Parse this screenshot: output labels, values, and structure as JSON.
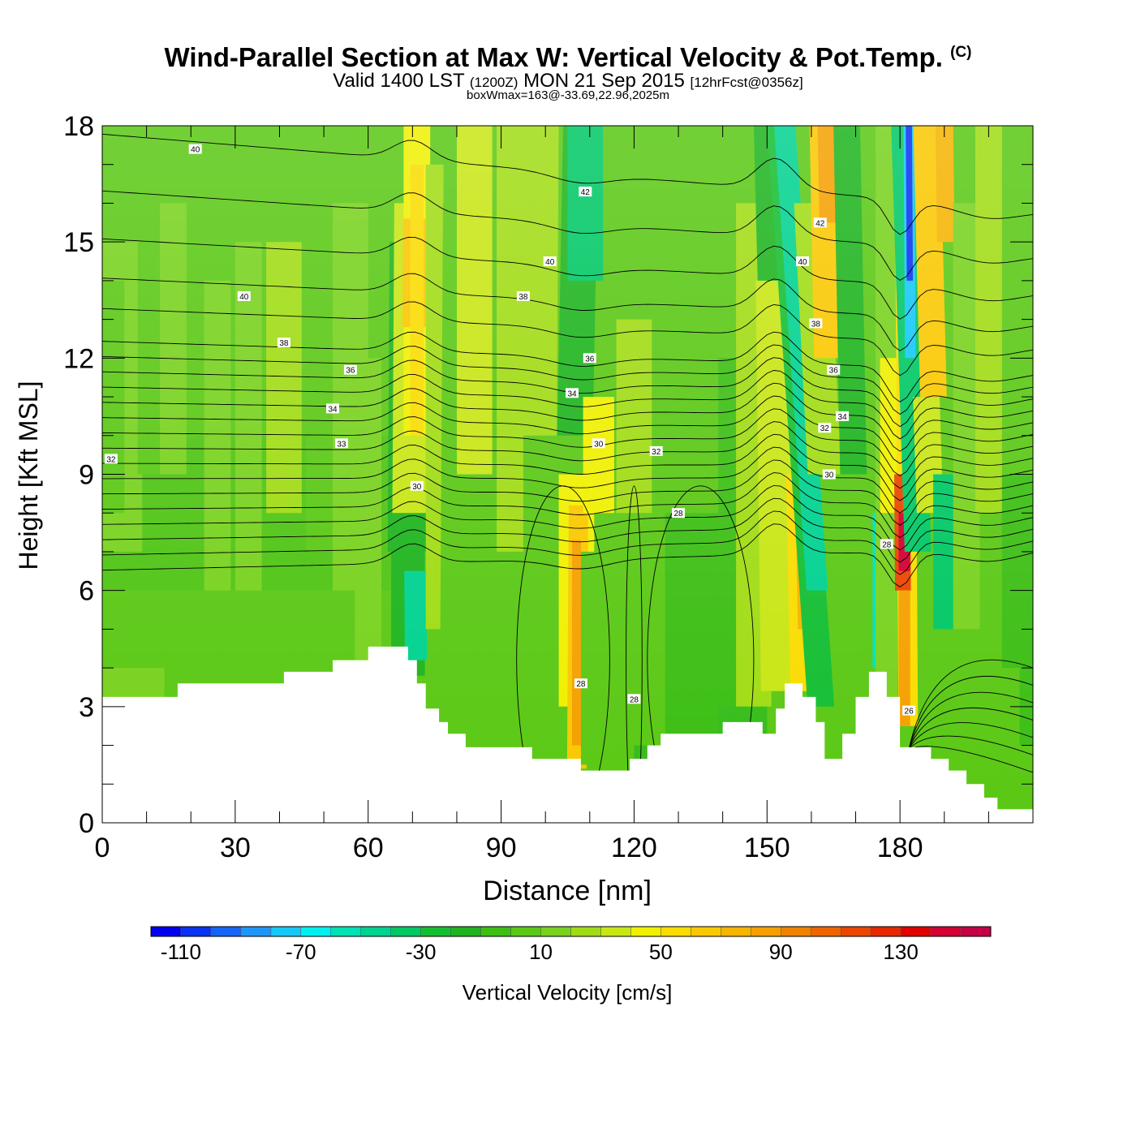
{
  "header": {
    "title": "Wind-Parallel Section at Max W: Vertical Velocity & Pot.Temp.",
    "copyright": "(C)",
    "valid_prefix": "Valid 1400 LST",
    "valid_z": "(1200Z)",
    "valid_date": "MON 21 Sep 2015",
    "forecast": "[12hrFcst@0356z]",
    "box_info": "boxWmax=163@-33.69,22.96,2025m"
  },
  "chart_data": {
    "type": "heatmap",
    "title": "Wind-Parallel Section at Max W: Vertical Velocity & Pot.Temp.",
    "xlabel": "Distance [nm]",
    "ylabel": "Height [Kft MSL]",
    "xlim": [
      0,
      210
    ],
    "ylim": [
      0,
      18
    ],
    "x_ticks": [
      0,
      30,
      60,
      90,
      120,
      150,
      180
    ],
    "y_ticks": [
      0,
      3,
      6,
      9,
      12,
      15,
      18
    ],
    "colorbar": {
      "label": "Vertical Velocity [cm/s]",
      "levels": [
        -120,
        -110,
        -100,
        -90,
        -80,
        -70,
        -60,
        -50,
        -40,
        -30,
        -20,
        -10,
        0,
        10,
        20,
        30,
        40,
        50,
        60,
        70,
        80,
        90,
        100,
        110,
        120,
        130,
        140,
        150,
        160
      ],
      "tick_labels": [
        "-110",
        "-70",
        "-30",
        "10",
        "50",
        "90",
        "130"
      ],
      "colors": [
        "#0000ee",
        "#0a32f2",
        "#1465f5",
        "#1e96f8",
        "#14c8f8",
        "#00f0f0",
        "#00e2b4",
        "#00d290",
        "#00c864",
        "#14be32",
        "#1eb41e",
        "#3cbe14",
        "#5ac814",
        "#78d21e",
        "#a0dc14",
        "#c8e614",
        "#f0f000",
        "#fadc00",
        "#fac800",
        "#f5b400",
        "#f5a000",
        "#f08200",
        "#f06400",
        "#eb4600",
        "#e62800",
        "#e10000",
        "#d20032",
        "#c30046"
      ]
    },
    "isentrope_labels": [
      {
        "x": 21,
        "y": 17.4,
        "text": "40"
      },
      {
        "x": 109,
        "y": 16.3,
        "text": "42"
      },
      {
        "x": 162,
        "y": 15.5,
        "text": "42"
      },
      {
        "x": 101,
        "y": 14.5,
        "text": "40"
      },
      {
        "x": 158,
        "y": 14.5,
        "text": "40"
      },
      {
        "x": 32,
        "y": 13.6,
        "text": "40"
      },
      {
        "x": 95,
        "y": 13.6,
        "text": "38"
      },
      {
        "x": 161,
        "y": 12.9,
        "text": "38"
      },
      {
        "x": 41,
        "y": 12.4,
        "text": "38"
      },
      {
        "x": 110,
        "y": 12.0,
        "text": "36"
      },
      {
        "x": 56,
        "y": 11.7,
        "text": "36"
      },
      {
        "x": 165,
        "y": 11.7,
        "text": "36"
      },
      {
        "x": 106,
        "y": 11.1,
        "text": "34"
      },
      {
        "x": 52,
        "y": 10.7,
        "text": "34"
      },
      {
        "x": 167,
        "y": 10.5,
        "text": "34"
      },
      {
        "x": 163,
        "y": 10.2,
        "text": "32"
      },
      {
        "x": 54,
        "y": 9.8,
        "text": "33"
      },
      {
        "x": 112,
        "y": 9.8,
        "text": "30"
      },
      {
        "x": 125,
        "y": 9.6,
        "text": "32"
      },
      {
        "x": 2,
        "y": 9.4,
        "text": "32"
      },
      {
        "x": 71,
        "y": 8.7,
        "text": "30"
      },
      {
        "x": 164,
        "y": 9.0,
        "text": "30"
      },
      {
        "x": 130,
        "y": 8.0,
        "text": "28"
      },
      {
        "x": 177,
        "y": 7.2,
        "text": "28"
      },
      {
        "x": 108,
        "y": 3.6,
        "text": "28"
      },
      {
        "x": 120,
        "y": 3.2,
        "text": "28"
      },
      {
        "x": 182,
        "y": 2.9,
        "text": "26"
      }
    ],
    "terrain": [
      [
        0,
        3.25
      ],
      [
        17,
        3.25
      ],
      [
        17,
        3.6
      ],
      [
        41,
        3.6
      ],
      [
        41,
        3.9
      ],
      [
        52,
        3.9
      ],
      [
        52,
        4.2
      ],
      [
        60,
        4.2
      ],
      [
        60,
        4.55
      ],
      [
        69,
        4.55
      ],
      [
        69,
        4.2
      ],
      [
        71,
        4.2
      ],
      [
        71,
        3.6
      ],
      [
        73,
        3.6
      ],
      [
        73,
        2.95
      ],
      [
        76,
        2.95
      ],
      [
        76,
        2.6
      ],
      [
        78,
        2.6
      ],
      [
        78,
        2.3
      ],
      [
        82,
        2.3
      ],
      [
        82,
        1.95
      ],
      [
        97,
        1.95
      ],
      [
        97,
        1.65
      ],
      [
        108,
        1.65
      ],
      [
        108,
        1.35
      ],
      [
        119,
        1.35
      ],
      [
        119,
        1.65
      ],
      [
        123,
        1.65
      ],
      [
        123,
        2.0
      ],
      [
        126,
        2.0
      ],
      [
        126,
        2.3
      ],
      [
        140,
        2.3
      ],
      [
        140,
        2.6
      ],
      [
        149,
        2.6
      ],
      [
        149,
        2.3
      ],
      [
        152,
        2.3
      ],
      [
        152,
        2.95
      ],
      [
        154,
        2.95
      ],
      [
        154,
        3.6
      ],
      [
        158,
        3.6
      ],
      [
        158,
        3.25
      ],
      [
        161,
        3.25
      ],
      [
        161,
        2.6
      ],
      [
        163,
        2.6
      ],
      [
        163,
        1.65
      ],
      [
        167,
        1.65
      ],
      [
        167,
        2.3
      ],
      [
        170,
        2.3
      ],
      [
        170,
        3.25
      ],
      [
        173,
        3.25
      ],
      [
        173,
        3.9
      ],
      [
        177,
        3.9
      ],
      [
        177,
        3.25
      ],
      [
        180,
        3.25
      ],
      [
        180,
        1.95
      ],
      [
        187,
        1.95
      ],
      [
        187,
        1.65
      ],
      [
        191,
        1.65
      ],
      [
        191,
        1.35
      ],
      [
        195,
        1.35
      ],
      [
        195,
        1.0
      ],
      [
        199,
        1.0
      ],
      [
        199,
        0.65
      ],
      [
        202,
        0.65
      ],
      [
        202,
        0.35
      ],
      [
        210,
        0.35
      ]
    ]
  }
}
